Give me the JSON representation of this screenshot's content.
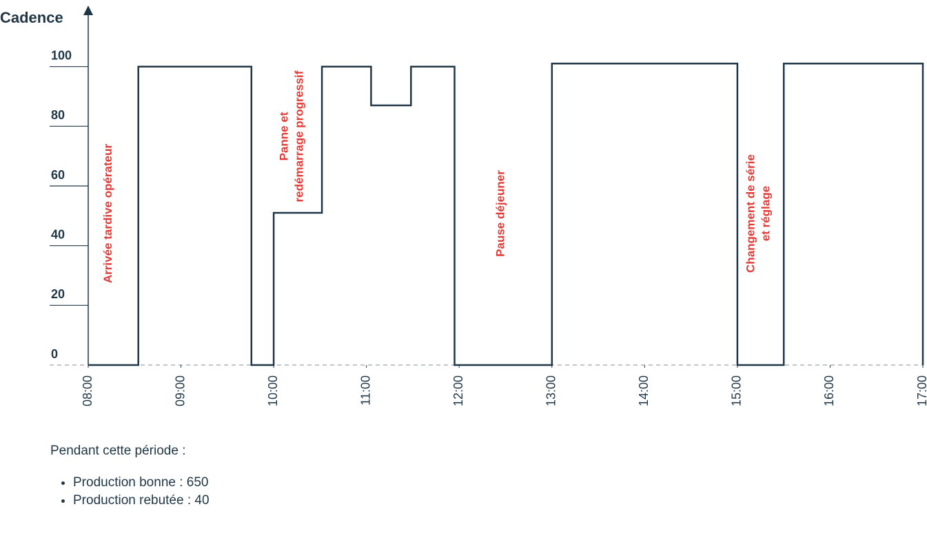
{
  "chart_data": {
    "type": "step",
    "y_label": "Cadence",
    "x": [
      8,
      8.54,
      8.54,
      9.76,
      9.76,
      10,
      10,
      10.52,
      10.52,
      11.05,
      11.05,
      11.48,
      11.48,
      11.95,
      11.95,
      13,
      13,
      15,
      15,
      15.5,
      15.5,
      17,
      17
    ],
    "values": [
      0,
      0,
      100,
      100,
      0,
      0,
      51,
      51,
      100,
      100,
      87,
      87,
      100,
      100,
      0,
      0,
      101,
      101,
      0,
      0,
      101,
      101,
      0
    ],
    "color": "#1f3646",
    "xlim": [
      8,
      17
    ],
    "xticks": [
      {
        "value": 8,
        "label": "08:00"
      },
      {
        "value": 9,
        "label": "09:00"
      },
      {
        "value": 10,
        "label": "10:00"
      },
      {
        "value": 11,
        "label": "11:00"
      },
      {
        "value": 12,
        "label": "12:00"
      },
      {
        "value": 13,
        "label": "13:00"
      },
      {
        "value": 14,
        "label": "14:00"
      },
      {
        "value": 15,
        "label": "15:00"
      },
      {
        "value": 16,
        "label": "16:00"
      },
      {
        "value": 17,
        "label": "17:00"
      }
    ],
    "ylim": [
      0,
      120
    ],
    "yticks": [
      0,
      20,
      40,
      60,
      80,
      100
    ],
    "annotation_color": "#e53935",
    "annotations": [
      [
        "Arrivée tardive opérateur"
      ],
      [
        "Panne et",
        "redémarrage progressif"
      ],
      [
        "Pause déjeuner"
      ],
      [
        "Changement de série",
        "et réglage"
      ]
    ]
  },
  "note": {
    "intro": "Pendant cette période :",
    "items": [
      "Production bonne : 650",
      "Production rebutée : 40"
    ]
  }
}
